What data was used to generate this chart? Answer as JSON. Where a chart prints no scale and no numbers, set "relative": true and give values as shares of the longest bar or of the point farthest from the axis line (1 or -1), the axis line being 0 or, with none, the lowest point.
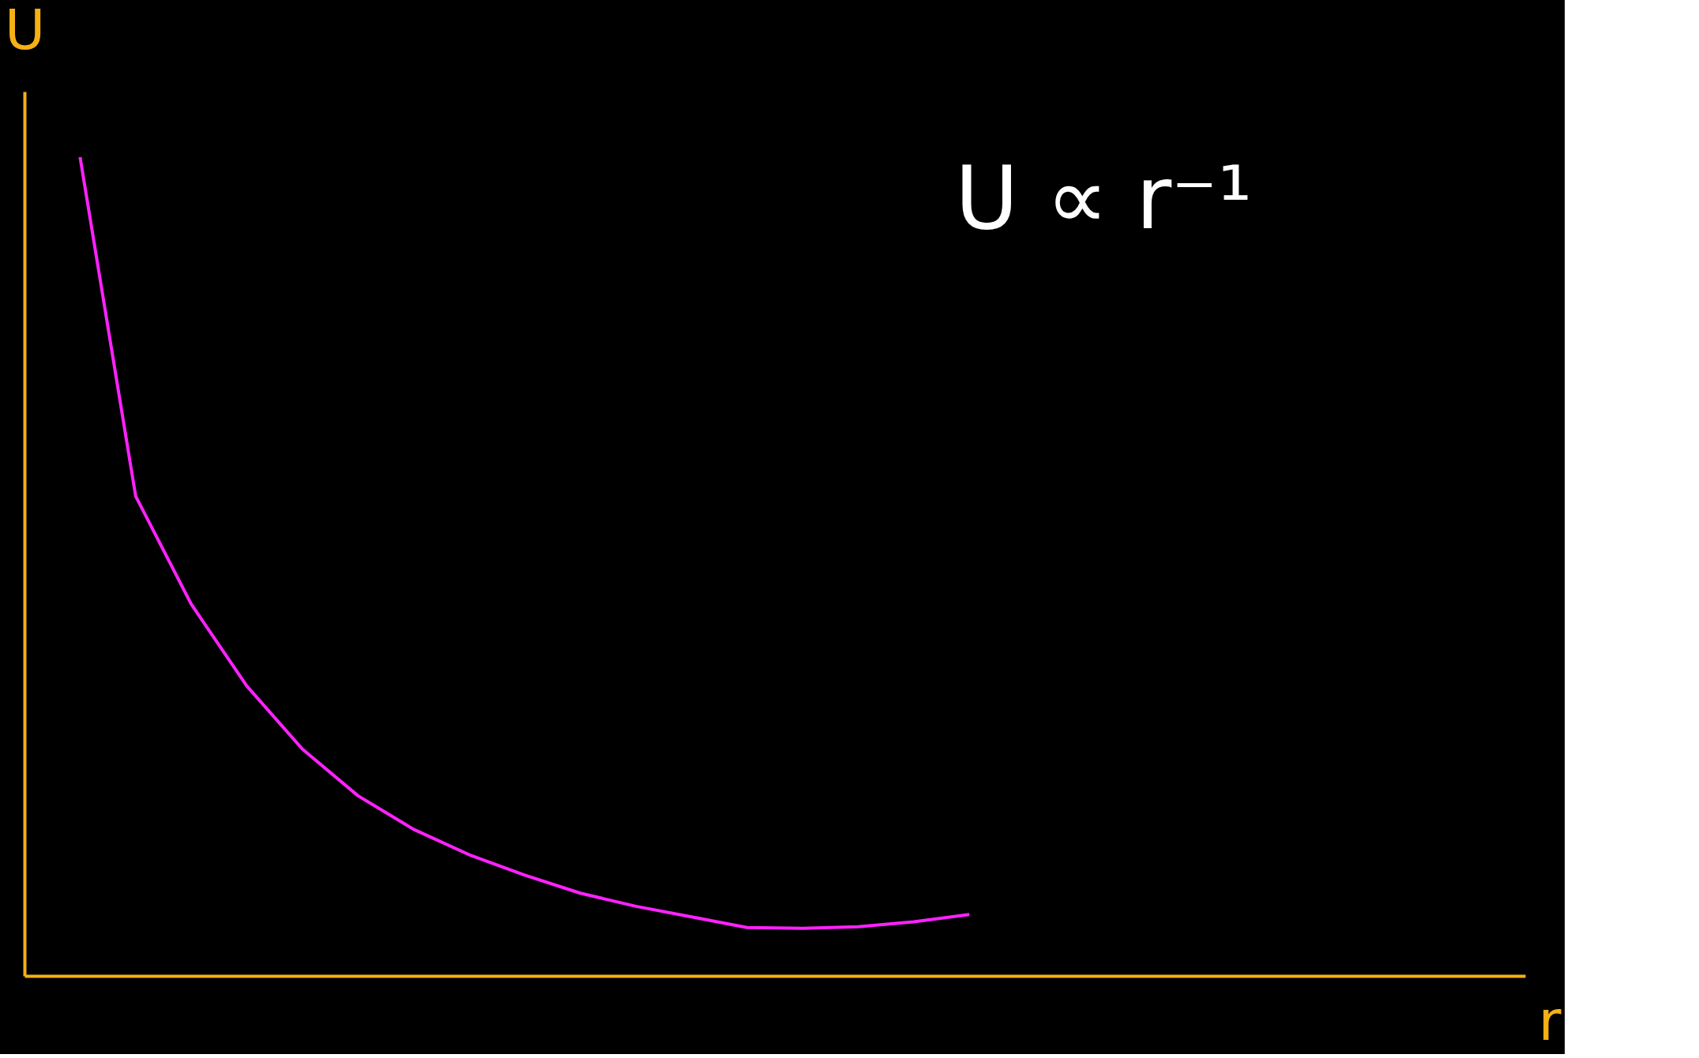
{
  "chart_data": {
    "type": "line",
    "relative": true,
    "xlabel": "r",
    "ylabel": "U",
    "categories": [
      null,
      null,
      null,
      null,
      null,
      null,
      null,
      null,
      null,
      null,
      null,
      null,
      null,
      null,
      null,
      null,
      null,
      null,
      null,
      null,
      null,
      null,
      null,
      null,
      null,
      null
    ],
    "series": [
      {
        "color": "#ff22ff",
        "values": [
          1.0,
          0.586,
          0.454,
          0.354,
          0.277,
          0.22,
          0.179,
          0.148,
          0.123,
          0.101,
          0.085,
          0.072,
          0.059,
          0.058,
          0.06,
          0.066,
          0.075,
          null,
          null,
          null,
          null,
          null,
          null,
          null,
          null,
          null
        ]
      }
    ],
    "annotations": [
      "U ∝ r⁻¹"
    ],
    "grid": false,
    "marker": "none",
    "line_style": "solid"
  }
}
